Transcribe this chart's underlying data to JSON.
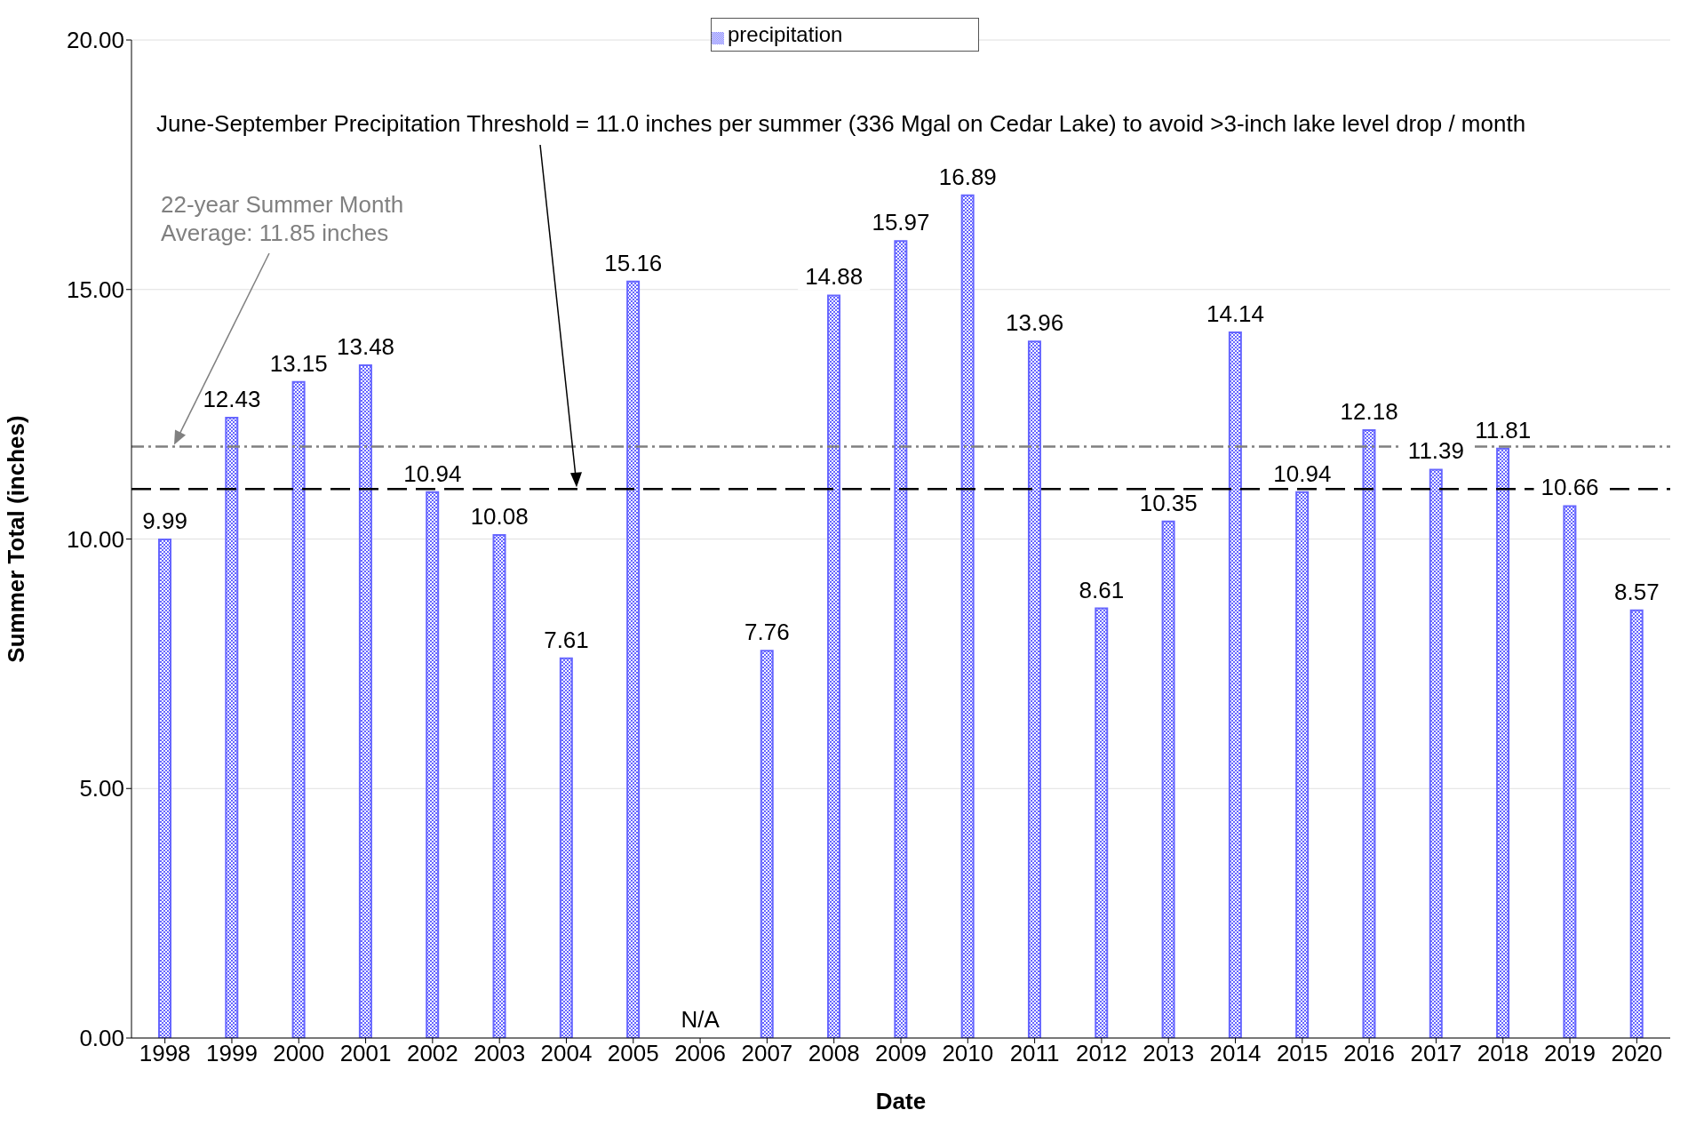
{
  "chart_data": {
    "type": "bar",
    "xlabel": "Date",
    "ylabel": "Summer Total (inches)",
    "categories": [
      "1998",
      "1999",
      "2000",
      "2001",
      "2002",
      "2003",
      "2004",
      "2005",
      "2006",
      "2007",
      "2008",
      "2009",
      "2010",
      "2011",
      "2012",
      "2013",
      "2014",
      "2015",
      "2016",
      "2017",
      "2018",
      "2019",
      "2020"
    ],
    "annotations": [
      "June-September Precipitation Threshold = 11.0 inches per summer (336 Mgal on Cedar Lake) to avoid >3-inch lake level drop / month",
      "22-year Summer Month Average: 11.85 inches"
    ],
    "series": [
      {
        "name": "precipitation",
        "color": "#6666ff",
        "values": [
          9.99,
          12.43,
          13.15,
          13.48,
          10.94,
          10.08,
          7.61,
          15.16,
          null,
          7.76,
          14.88,
          15.97,
          16.89,
          13.96,
          8.61,
          10.35,
          14.14,
          10.94,
          12.18,
          11.39,
          11.81,
          10.66,
          8.57
        ],
        "value_labels": [
          "9.99",
          "12.43",
          "13.15",
          "13.48",
          "10.94",
          "10.08",
          "7.61",
          "15.16",
          "N/A",
          "7.76",
          "14.88",
          "15.97",
          "16.89",
          "13.96",
          "8.61",
          "10.35",
          "14.14",
          "10.94",
          "12.18",
          "11.39",
          "11.81",
          "10.66",
          "8.57"
        ]
      }
    ],
    "ylim": [
      0,
      20
    ],
    "yticks": [
      {
        "value": 0,
        "label": "0.00"
      },
      {
        "value": 5,
        "label": "5.00"
      },
      {
        "value": 10,
        "label": "10.00"
      },
      {
        "value": 15,
        "label": "15.00"
      },
      {
        "value": 20,
        "label": "20.00"
      }
    ],
    "grid": "y",
    "legend": "top",
    "ref_lines": [
      {
        "axis": "y",
        "value": 11.0,
        "color": "#000000",
        "line_style": "dashed"
      },
      {
        "axis": "y",
        "value": 11.85,
        "color": "#808080",
        "line_style": "dotted"
      }
    ]
  }
}
